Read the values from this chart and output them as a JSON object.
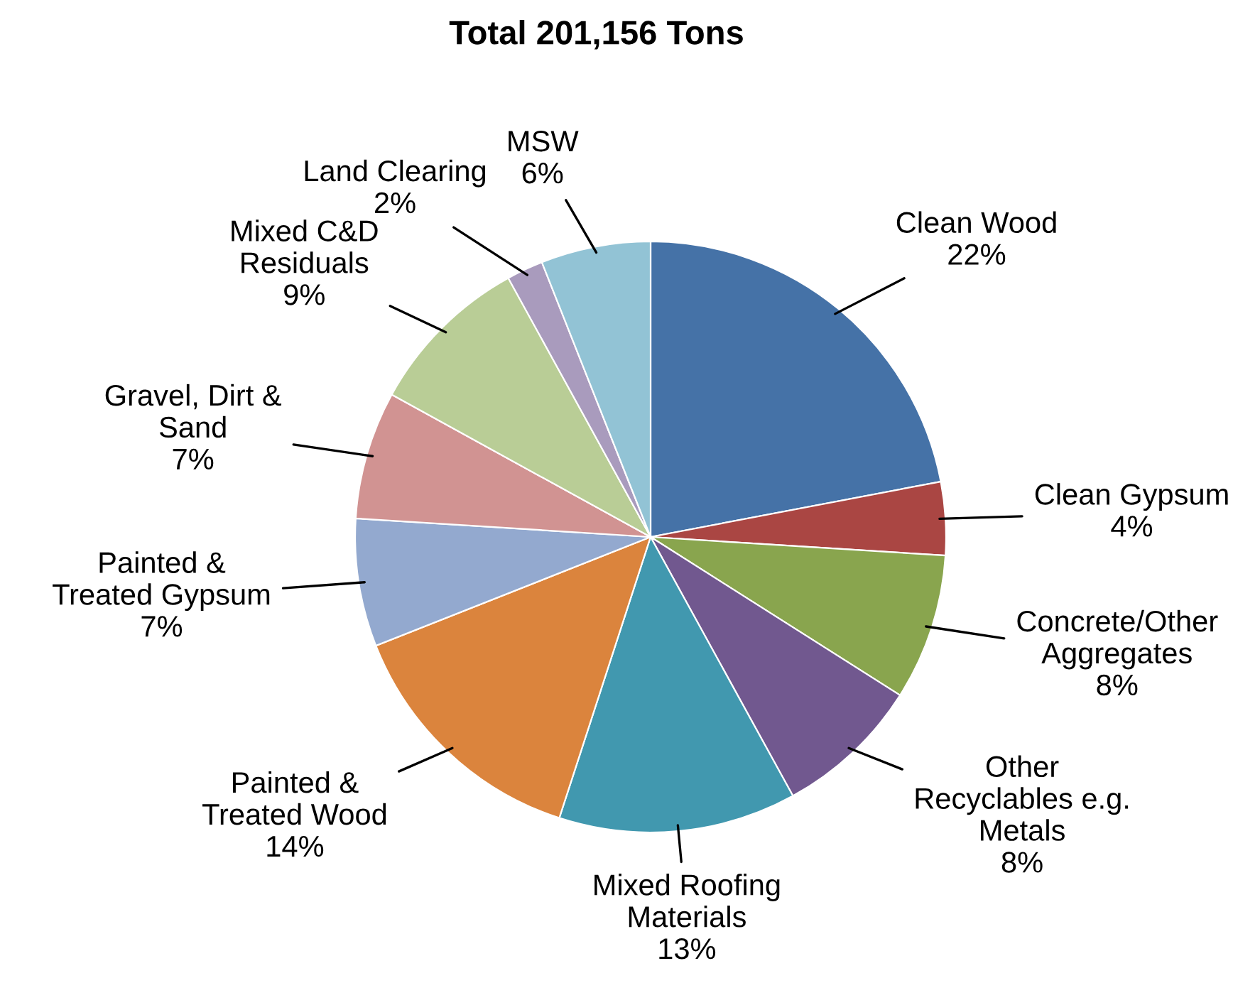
{
  "chart_data": {
    "type": "pie",
    "title": "Total 201,156 Tons",
    "categories": [
      "Clean Wood",
      "Clean Gypsum",
      "Concrete/Other\nAggregates",
      "Other\nRecyclables e.g.\nMetals",
      "Mixed Roofing\nMaterials",
      "Painted &\nTreated Wood",
      "Painted &\nTreated Gypsum",
      "Gravel, Dirt &\nSand",
      "Mixed C&D\nResiduals",
      "Land Clearing",
      "MSW"
    ],
    "values": [
      22,
      4,
      8,
      8,
      13,
      14,
      7,
      7,
      9,
      2,
      6
    ],
    "value_labels": [
      "22%",
      "4%",
      "8%",
      "8%",
      "13%",
      "14%",
      "7%",
      "7%",
      "9%",
      "2%",
      "6%"
    ],
    "colors": [
      "#4572a7",
      "#aa4643",
      "#89a54e",
      "#71588f",
      "#4198af",
      "#db843d",
      "#93a9cf",
      "#d19392",
      "#b9cd96",
      "#a99bbd",
      "#92c3d5"
    ]
  }
}
